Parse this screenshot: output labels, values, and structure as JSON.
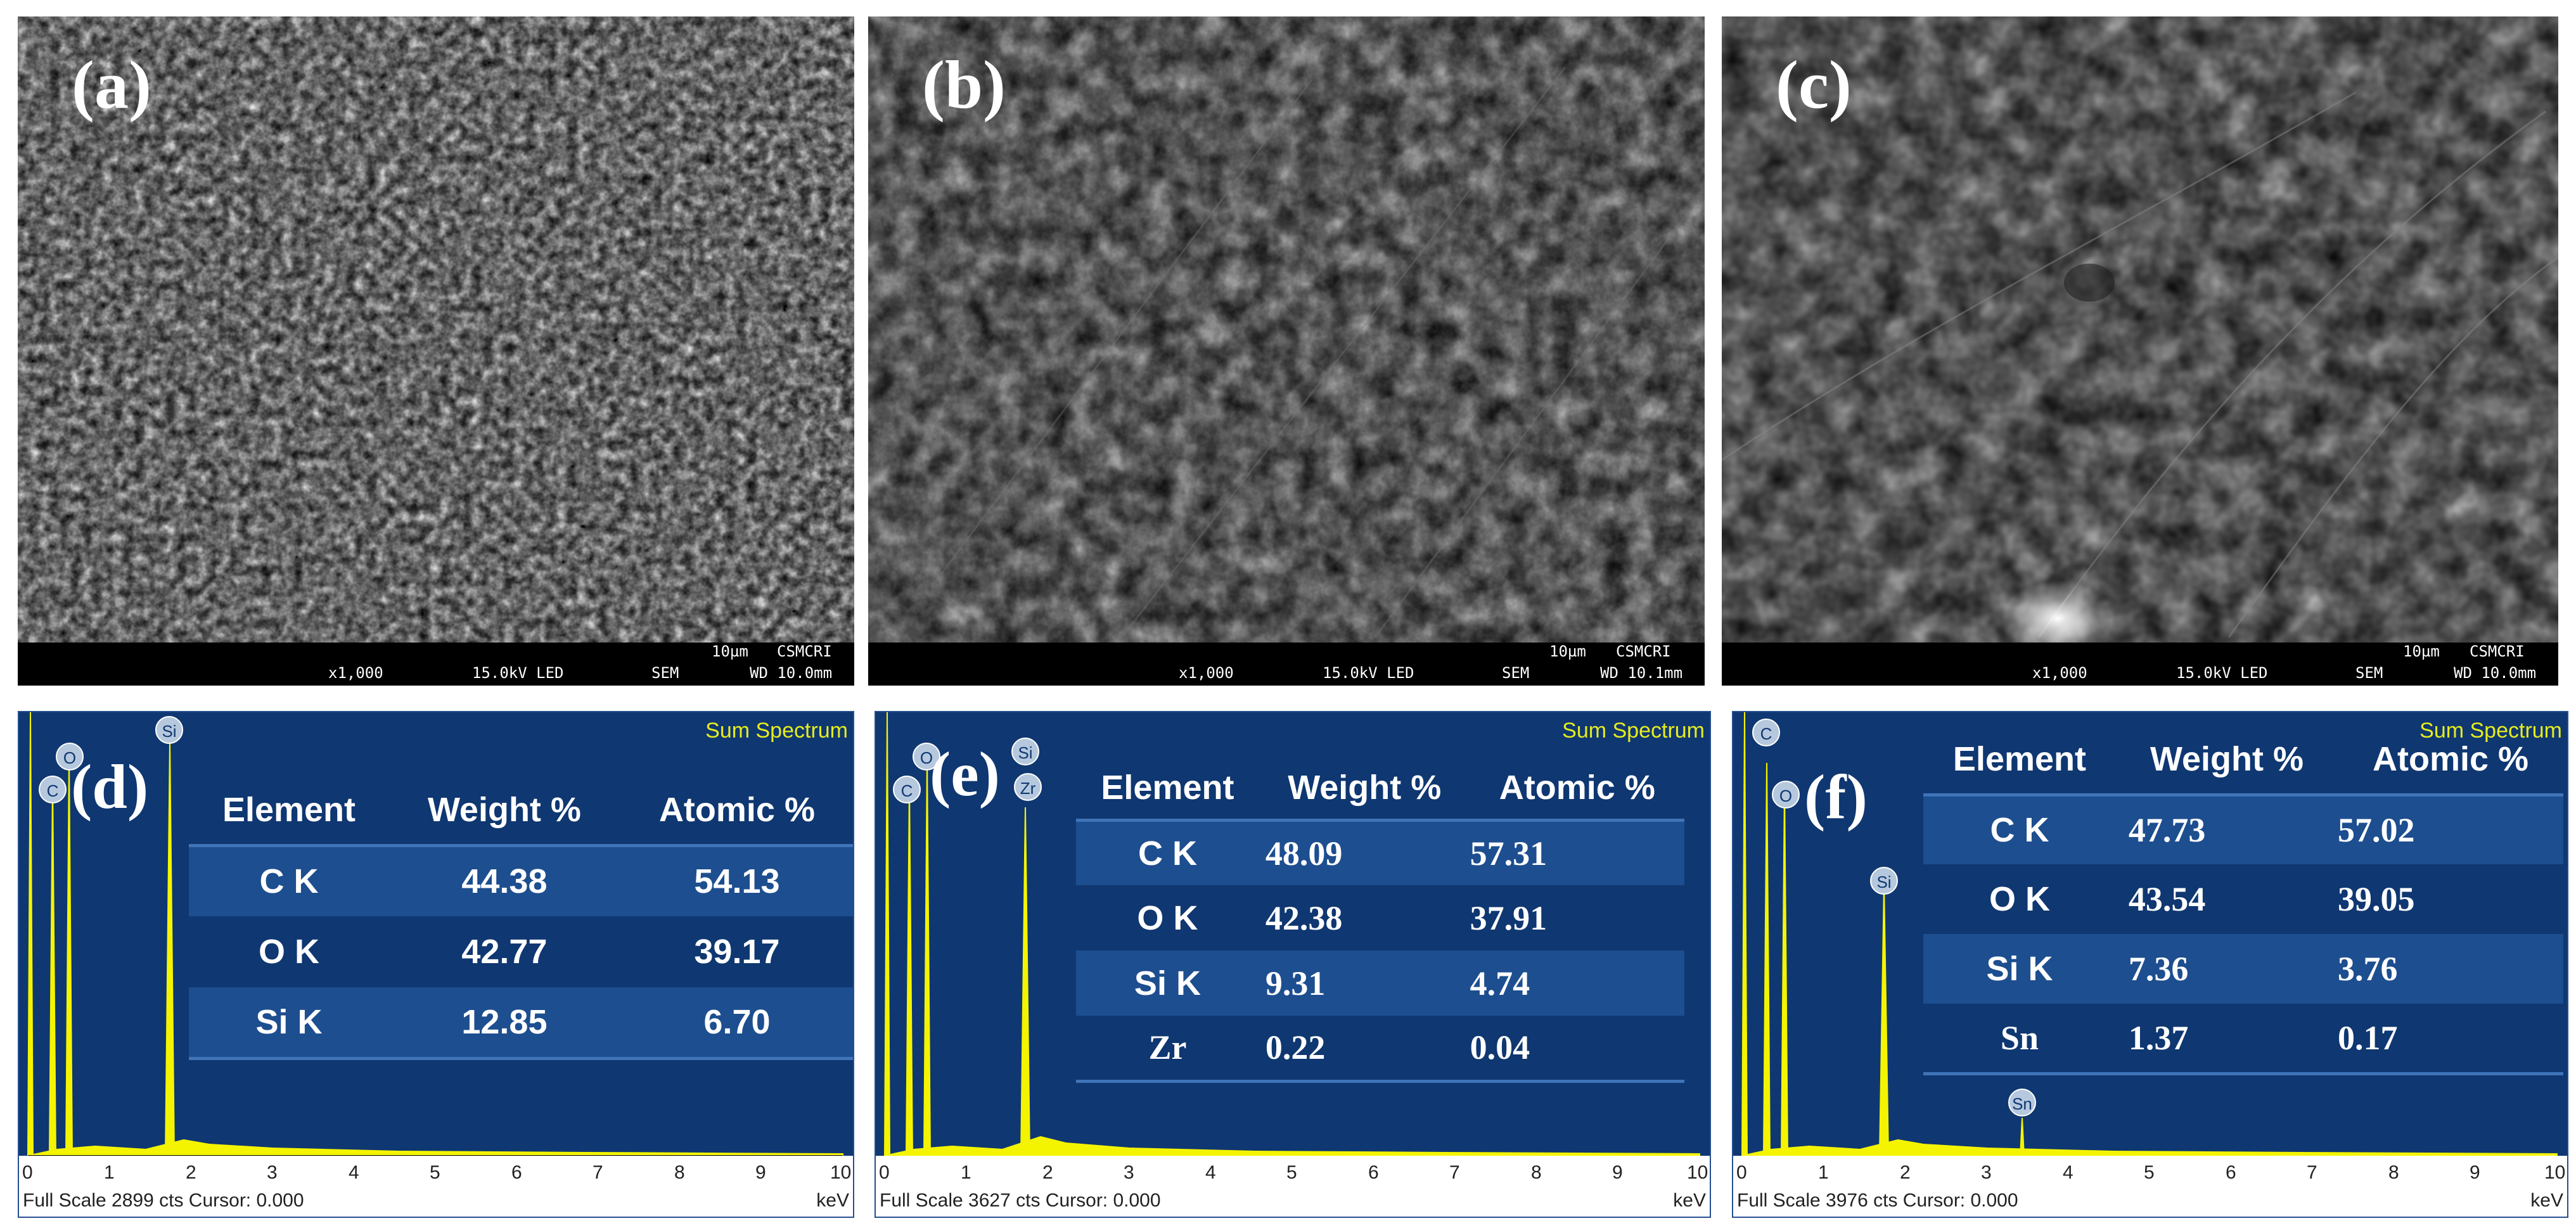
{
  "sem_panels": [
    {
      "label": "(a)",
      "scale": "10µm",
      "lab": "CSMCRI",
      "mag": "x1,000",
      "kv": "15.0kV LED",
      "mode": "SEM",
      "wd": "WD 10.0mm"
    },
    {
      "label": "(b)",
      "scale": "10µm",
      "lab": "CSMCRI",
      "mag": "x1,000",
      "kv": "15.0kV LED",
      "mode": "SEM",
      "wd": "WD 10.1mm"
    },
    {
      "label": "(c)",
      "scale": "10µm",
      "lab": "CSMCRI",
      "mag": "x1,000",
      "kv": "15.0kV LED",
      "mode": "SEM",
      "wd": "WD 10.0mm"
    }
  ],
  "eds_panels": [
    {
      "label": "(d)",
      "title": "Sum Spectrum",
      "footer": "Full Scale 2899 cts Cursor: 0.000",
      "unit": "keV",
      "headers": [
        "Element",
        "Weight %",
        "Atomic %"
      ],
      "rows": [
        [
          "C K",
          "44.38",
          "54.13"
        ],
        [
          "O K",
          "42.77",
          "39.17"
        ],
        [
          "Si K",
          "12.85",
          "6.70"
        ]
      ],
      "peaks": [
        "C",
        "O",
        "Si"
      ]
    },
    {
      "label": "(e)",
      "title": "Sum Spectrum",
      "footer": "Full Scale 3627 cts Cursor: 0.000",
      "unit": "keV",
      "headers": [
        "Element",
        "Weight %",
        "Atomic %"
      ],
      "rows": [
        [
          "C K",
          "48.09",
          "57.31"
        ],
        [
          "O K",
          "42.38",
          "37.91"
        ],
        [
          "Si K",
          "9.31",
          "4.74"
        ],
        [
          "Zr",
          "0.22",
          "0.04"
        ]
      ],
      "peaks": [
        "C",
        "O",
        "Si",
        "Zr"
      ]
    },
    {
      "label": "(f)",
      "title": "Sum Spectrum",
      "footer": "Full Scale 3976 cts Cursor: 0.000",
      "unit": "keV",
      "headers": [
        "Element",
        "Weight %",
        "Atomic %"
      ],
      "rows": [
        [
          "C K",
          "47.73",
          "57.02"
        ],
        [
          "O K",
          "43.54",
          "39.05"
        ],
        [
          "Si K",
          "7.36",
          "3.76"
        ],
        [
          "Sn",
          "1.37",
          "0.17"
        ]
      ],
      "peaks": [
        "C",
        "O",
        "Si",
        "Sn"
      ]
    }
  ],
  "axis_ticks": [
    "0",
    "1",
    "2",
    "3",
    "4",
    "5",
    "6",
    "7",
    "8",
    "9",
    "10"
  ],
  "colors": {
    "eds_bg": "#0f3771",
    "spectrum": "#f4f400",
    "title": "#e6ec1e",
    "row_alt": "#1d4e8f",
    "rule": "#3f74b8"
  }
}
